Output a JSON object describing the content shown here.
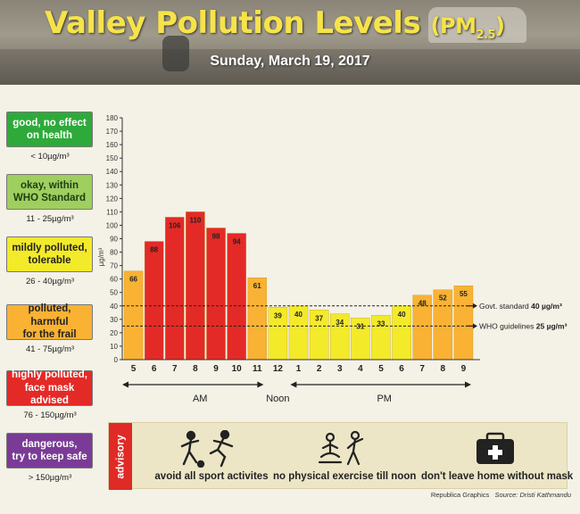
{
  "header": {
    "title_main": "Valley Pollution Levels",
    "title_pm": "(PM",
    "title_sub": "2.5",
    "title_close": ")",
    "date": "Sunday, March 19, 2017"
  },
  "legend": [
    {
      "label_line1": "good, no effect",
      "label_line2": "on health",
      "range": "< 10µg/m³",
      "color": "#2eaa3a",
      "text_color": "#ffffff"
    },
    {
      "label_line1": "okay, within",
      "label_line2": "WHO Standard",
      "range": "11 - 25µg/m³",
      "color": "#9fcf5e",
      "text_color": "#1d3d12"
    },
    {
      "label_line1": "mildly polluted,",
      "label_line2": "tolerable",
      "range": "26 - 40µg/m³",
      "color": "#f3ea2a",
      "text_color": "#222222"
    },
    {
      "label_line1": "polluted, harmful",
      "label_line2": "for the frail",
      "range": "41 - 75µg/m³",
      "color": "#f9b233",
      "text_color": "#222222"
    },
    {
      "label_line1": "highly polluted,",
      "label_line2": "face mask advised",
      "range": "76 - 150µg/m³",
      "color": "#e42a26",
      "text_color": "#ffffff"
    },
    {
      "label_line1": "dangerous,",
      "label_line2": "try to keep safe",
      "range": "> 150µg/m³",
      "color": "#7a3b96",
      "text_color": "#ffffff"
    }
  ],
  "chart_data": {
    "type": "bar",
    "ylabel": "µg/m³",
    "ylim": [
      0,
      180
    ],
    "yticks": [
      0,
      10,
      20,
      30,
      40,
      50,
      60,
      70,
      80,
      90,
      100,
      110,
      120,
      130,
      140,
      150,
      160,
      170,
      180
    ],
    "categories": [
      "5",
      "6",
      "7",
      "8",
      "9",
      "10",
      "11",
      "12",
      "1",
      "2",
      "3",
      "4",
      "5",
      "6",
      "7",
      "8",
      "9"
    ],
    "values": [
      66,
      88,
      106,
      110,
      98,
      94,
      61,
      39,
      40,
      37,
      34,
      31,
      33,
      40,
      48,
      52,
      55
    ],
    "data_labels": [
      "66",
      "88",
      "106",
      "110",
      "98",
      "94",
      "61",
      "39",
      "40",
      "37",
      "34",
      "31",
      "33",
      "40",
      "48",
      "52",
      "55"
    ],
    "colors": [
      "#f9b233",
      "#e42a26",
      "#e42a26",
      "#e42a26",
      "#e42a26",
      "#e42a26",
      "#f9b233",
      "#f3ea2a",
      "#f3ea2a",
      "#f3ea2a",
      "#f3ea2a",
      "#f3ea2a",
      "#f3ea2a",
      "#f3ea2a",
      "#f9b233",
      "#f9b233",
      "#f9b233"
    ],
    "reference_lines": [
      {
        "value": 40,
        "label_prefix": "Govt. standard",
        "label_value": "40 µg/m³"
      },
      {
        "value": 25,
        "label_prefix": "WHO guidelines",
        "label_value": "25 µg/m³"
      }
    ],
    "periods": {
      "am": "AM",
      "noon": "Noon",
      "pm": "PM"
    }
  },
  "advisory": {
    "tab": "advisory",
    "items": [
      {
        "icon": "sports-icon",
        "label": "avoid all sport activites"
      },
      {
        "icon": "exercise-icon",
        "label": "no physical exercise till noon"
      },
      {
        "icon": "first-aid-icon",
        "label": "don't leave home without mask"
      }
    ]
  },
  "credit": {
    "left": "Republica Graphics",
    "right": "Source: Dristi Kathmandu"
  }
}
